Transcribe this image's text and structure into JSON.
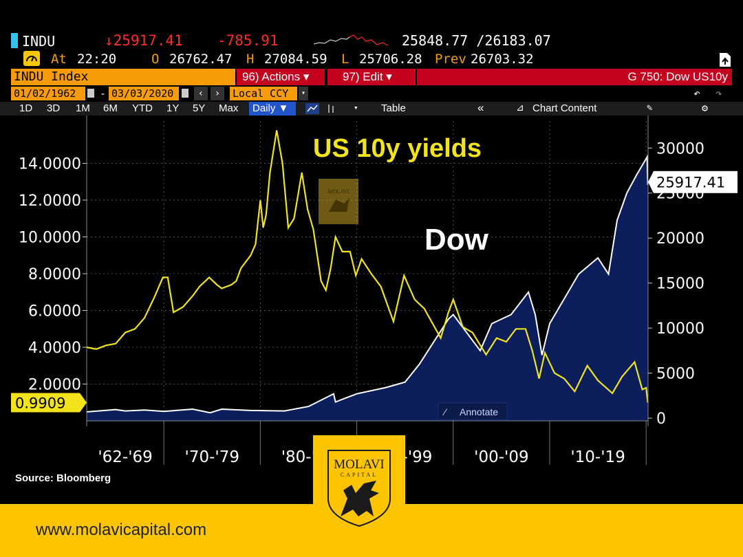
{
  "header": {
    "ticker": "INDU",
    "last_price": "↓25917.41",
    "change": "-785.91",
    "low_high": "25848.77 /26183.07",
    "at_label": "At",
    "time": "22:20",
    "open_label": "O",
    "open": "26762.47",
    "high_label": "H",
    "high": "27084.59",
    "low_label": "L",
    "low": "25706.28",
    "prev_label": "Prev",
    "prev": "26703.32",
    "status_icon": "gauge-icon",
    "export_icon": "export-icon"
  },
  "toolbar": {
    "index_name": "INDU Index",
    "actions_label": "96) Actions ▾",
    "edit_label": "97) Edit ▾",
    "page_title": "G 750: Dow US10y"
  },
  "dates": {
    "start": "01/02/1962",
    "separator": "-",
    "end": "03/03/2020",
    "currency": "Local CCY"
  },
  "periods": {
    "items": [
      "1D",
      "3D",
      "1M",
      "6M",
      "YTD",
      "1Y",
      "5Y",
      "Max"
    ],
    "frequency": "Daily ▼",
    "table_label": "Table",
    "collapse_label": "«",
    "chart_content_label": "Chart Content"
  },
  "chart_data": {
    "type": "line",
    "title": "US 10y yields",
    "annotation_dow": "Dow",
    "source": "Source: Bloomberg",
    "annotate_label": "Annotate",
    "x_tick_labels": [
      "'62-'69",
      "'70-'79",
      "'80-'89",
      "'90-'99",
      "'00-'09",
      "'10-'19"
    ],
    "x_range": [
      1962.0,
      2020.2
    ],
    "left_axis": {
      "ticks": [
        2,
        4,
        6,
        8,
        10,
        12,
        14
      ],
      "tick_labels": [
        "2.0000",
        "4.0000",
        "6.0000",
        "8.0000",
        "10.0000",
        "12.0000",
        "14.0000"
      ],
      "range": [
        0,
        16.3
      ]
    },
    "right_axis": {
      "ticks": [
        0,
        5000,
        10000,
        15000,
        20000,
        25000,
        30000
      ],
      "tick_labels": [
        "0",
        "5000",
        "10000",
        "15000",
        "20000",
        "25000",
        "30000"
      ],
      "range": [
        -300,
        33000
      ]
    },
    "series": [
      {
        "name": "US10y",
        "axis": "left",
        "color": "#f2e31a",
        "last_value_label": "0.9909",
        "x": [
          1962.0,
          1963.0,
          1964.0,
          1965.0,
          1966.0,
          1967.0,
          1968.0,
          1969.0,
          1969.9,
          1970.4,
          1971.0,
          1972.0,
          1973.0,
          1973.7,
          1974.7,
          1975.5,
          1976.0,
          1977.0,
          1977.5,
          1978.0,
          1979.0,
          1979.5,
          1980.0,
          1980.3,
          1980.6,
          1981.0,
          1981.7,
          1982.3,
          1982.9,
          1983.5,
          1984.3,
          1984.9,
          1985.5,
          1986.3,
          1986.8,
          1987.3,
          1987.8,
          1988.5,
          1989.3,
          1989.9,
          1990.5,
          1991.5,
          1992.5,
          1993.8,
          1994.9,
          1996.0,
          1997.0,
          1998.7,
          1999.5,
          2000.0,
          2001.0,
          2002.0,
          2003.4,
          2004.5,
          2005.5,
          2006.5,
          2007.5,
          2008.2,
          2008.9,
          2009.5,
          2010.5,
          2011.5,
          2012.6,
          2013.9,
          2015.0,
          2016.5,
          2017.5,
          2018.8,
          2019.6,
          2020.0,
          2020.17
        ],
        "values": [
          4.0,
          3.9,
          4.1,
          4.2,
          4.8,
          5.0,
          5.6,
          6.7,
          7.8,
          7.8,
          5.9,
          6.2,
          6.8,
          7.3,
          7.8,
          7.4,
          7.2,
          7.4,
          7.6,
          8.3,
          9.0,
          9.6,
          12.0,
          10.5,
          11.2,
          13.5,
          15.8,
          14.0,
          10.5,
          11.0,
          13.5,
          11.5,
          10.4,
          7.6,
          7.1,
          8.3,
          10.0,
          9.2,
          9.2,
          7.9,
          8.8,
          8.0,
          7.3,
          5.4,
          7.9,
          6.6,
          6.1,
          4.5,
          5.9,
          6.6,
          5.1,
          4.8,
          3.6,
          4.5,
          4.3,
          5.0,
          5.0,
          3.8,
          2.3,
          3.7,
          2.6,
          2.3,
          1.6,
          3.0,
          2.2,
          1.5,
          2.4,
          3.2,
          1.7,
          1.8,
          0.99
        ]
      },
      {
        "name": "Dow",
        "axis": "right",
        "color": "#ffffff",
        "fill": "#0c1f5c",
        "last_value_label": "25917.41",
        "x": [
          1962.0,
          1965.0,
          1966.0,
          1968.0,
          1970.0,
          1973.0,
          1974.8,
          1976.0,
          1979.0,
          1982.5,
          1985.0,
          1987.6,
          1987.8,
          1990.0,
          1993.0,
          1995.0,
          1996.5,
          1998.0,
          1999.5,
          2000.0,
          2002.8,
          2004.0,
          2006.0,
          2007.8,
          2008.5,
          2009.2,
          2010.0,
          2013.0,
          2015.0,
          2016.1,
          2017.0,
          2018.0,
          2019.0,
          2020.1,
          2020.17
        ],
        "values": [
          700,
          950,
          800,
          900,
          750,
          1000,
          600,
          1000,
          850,
          800,
          1300,
          2700,
          1800,
          2700,
          3400,
          4000,
          6000,
          8500,
          11000,
          11500,
          7500,
          10500,
          11500,
          14000,
          11500,
          7000,
          10500,
          16000,
          17800,
          16000,
          22000,
          25000,
          27000,
          29000,
          25917
        ]
      }
    ]
  },
  "footer": {
    "website": "www.molavicapital.com",
    "logo_name": "MOLAVI",
    "logo_sub": "CAPITAL",
    "logo_icon": "griffin-crest-icon",
    "watermark_icon": "molavi-watermark-icon"
  },
  "colors": {
    "bloomberg_orange": "#f79c08",
    "bloomberg_red": "#c4021e",
    "yield_yellow": "#f2e31a",
    "brand_gold": "#fdc400",
    "dow_fill": "#0c1f5c"
  }
}
